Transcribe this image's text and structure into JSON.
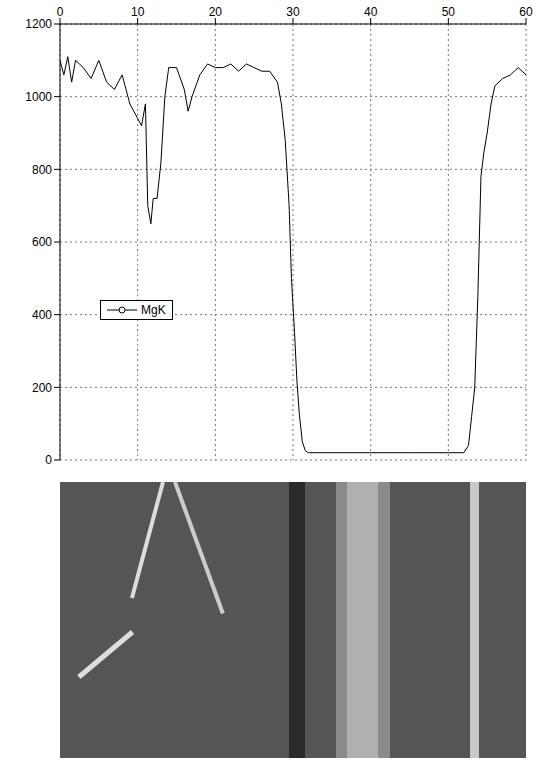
{
  "chart_data": {
    "type": "line",
    "xlim": [
      0,
      60
    ],
    "xticks": [
      0,
      10,
      20,
      30,
      40,
      50,
      60
    ],
    "ylim": [
      0,
      1200
    ],
    "yticks": [
      0,
      200,
      400,
      600,
      800,
      1000,
      1200
    ],
    "grid": true,
    "legend": "left",
    "series": [
      {
        "name": "MgK",
        "color": "#000000",
        "x": [
          0,
          0.5,
          1,
          1.5,
          2,
          3,
          4,
          5,
          6,
          7,
          8,
          9,
          10,
          10.5,
          11,
          11.3,
          11.7,
          12,
          12.5,
          13,
          13.5,
          14,
          15,
          16,
          16.5,
          17,
          18,
          19,
          20,
          21,
          22,
          23,
          24,
          25,
          26,
          27,
          28,
          28.5,
          29,
          29.5,
          29.8,
          30.2,
          30.5,
          30.8,
          31.2,
          31.6,
          32,
          35,
          40,
          45,
          50,
          52,
          52.6,
          53,
          53.4,
          53.8,
          54.2,
          54.6,
          55,
          55.5,
          56,
          57,
          58,
          59,
          60
        ],
        "values": [
          1100,
          1060,
          1110,
          1040,
          1100,
          1080,
          1050,
          1100,
          1040,
          1020,
          1060,
          980,
          940,
          920,
          980,
          700,
          650,
          720,
          720,
          820,
          1000,
          1080,
          1080,
          1020,
          960,
          1000,
          1060,
          1090,
          1080,
          1080,
          1090,
          1070,
          1090,
          1080,
          1070,
          1070,
          1040,
          980,
          880,
          700,
          500,
          350,
          220,
          130,
          50,
          25,
          20,
          20,
          20,
          20,
          20,
          20,
          40,
          120,
          200,
          450,
          780,
          850,
          900,
          980,
          1030,
          1050,
          1060,
          1080,
          1060
        ]
      }
    ]
  }
}
